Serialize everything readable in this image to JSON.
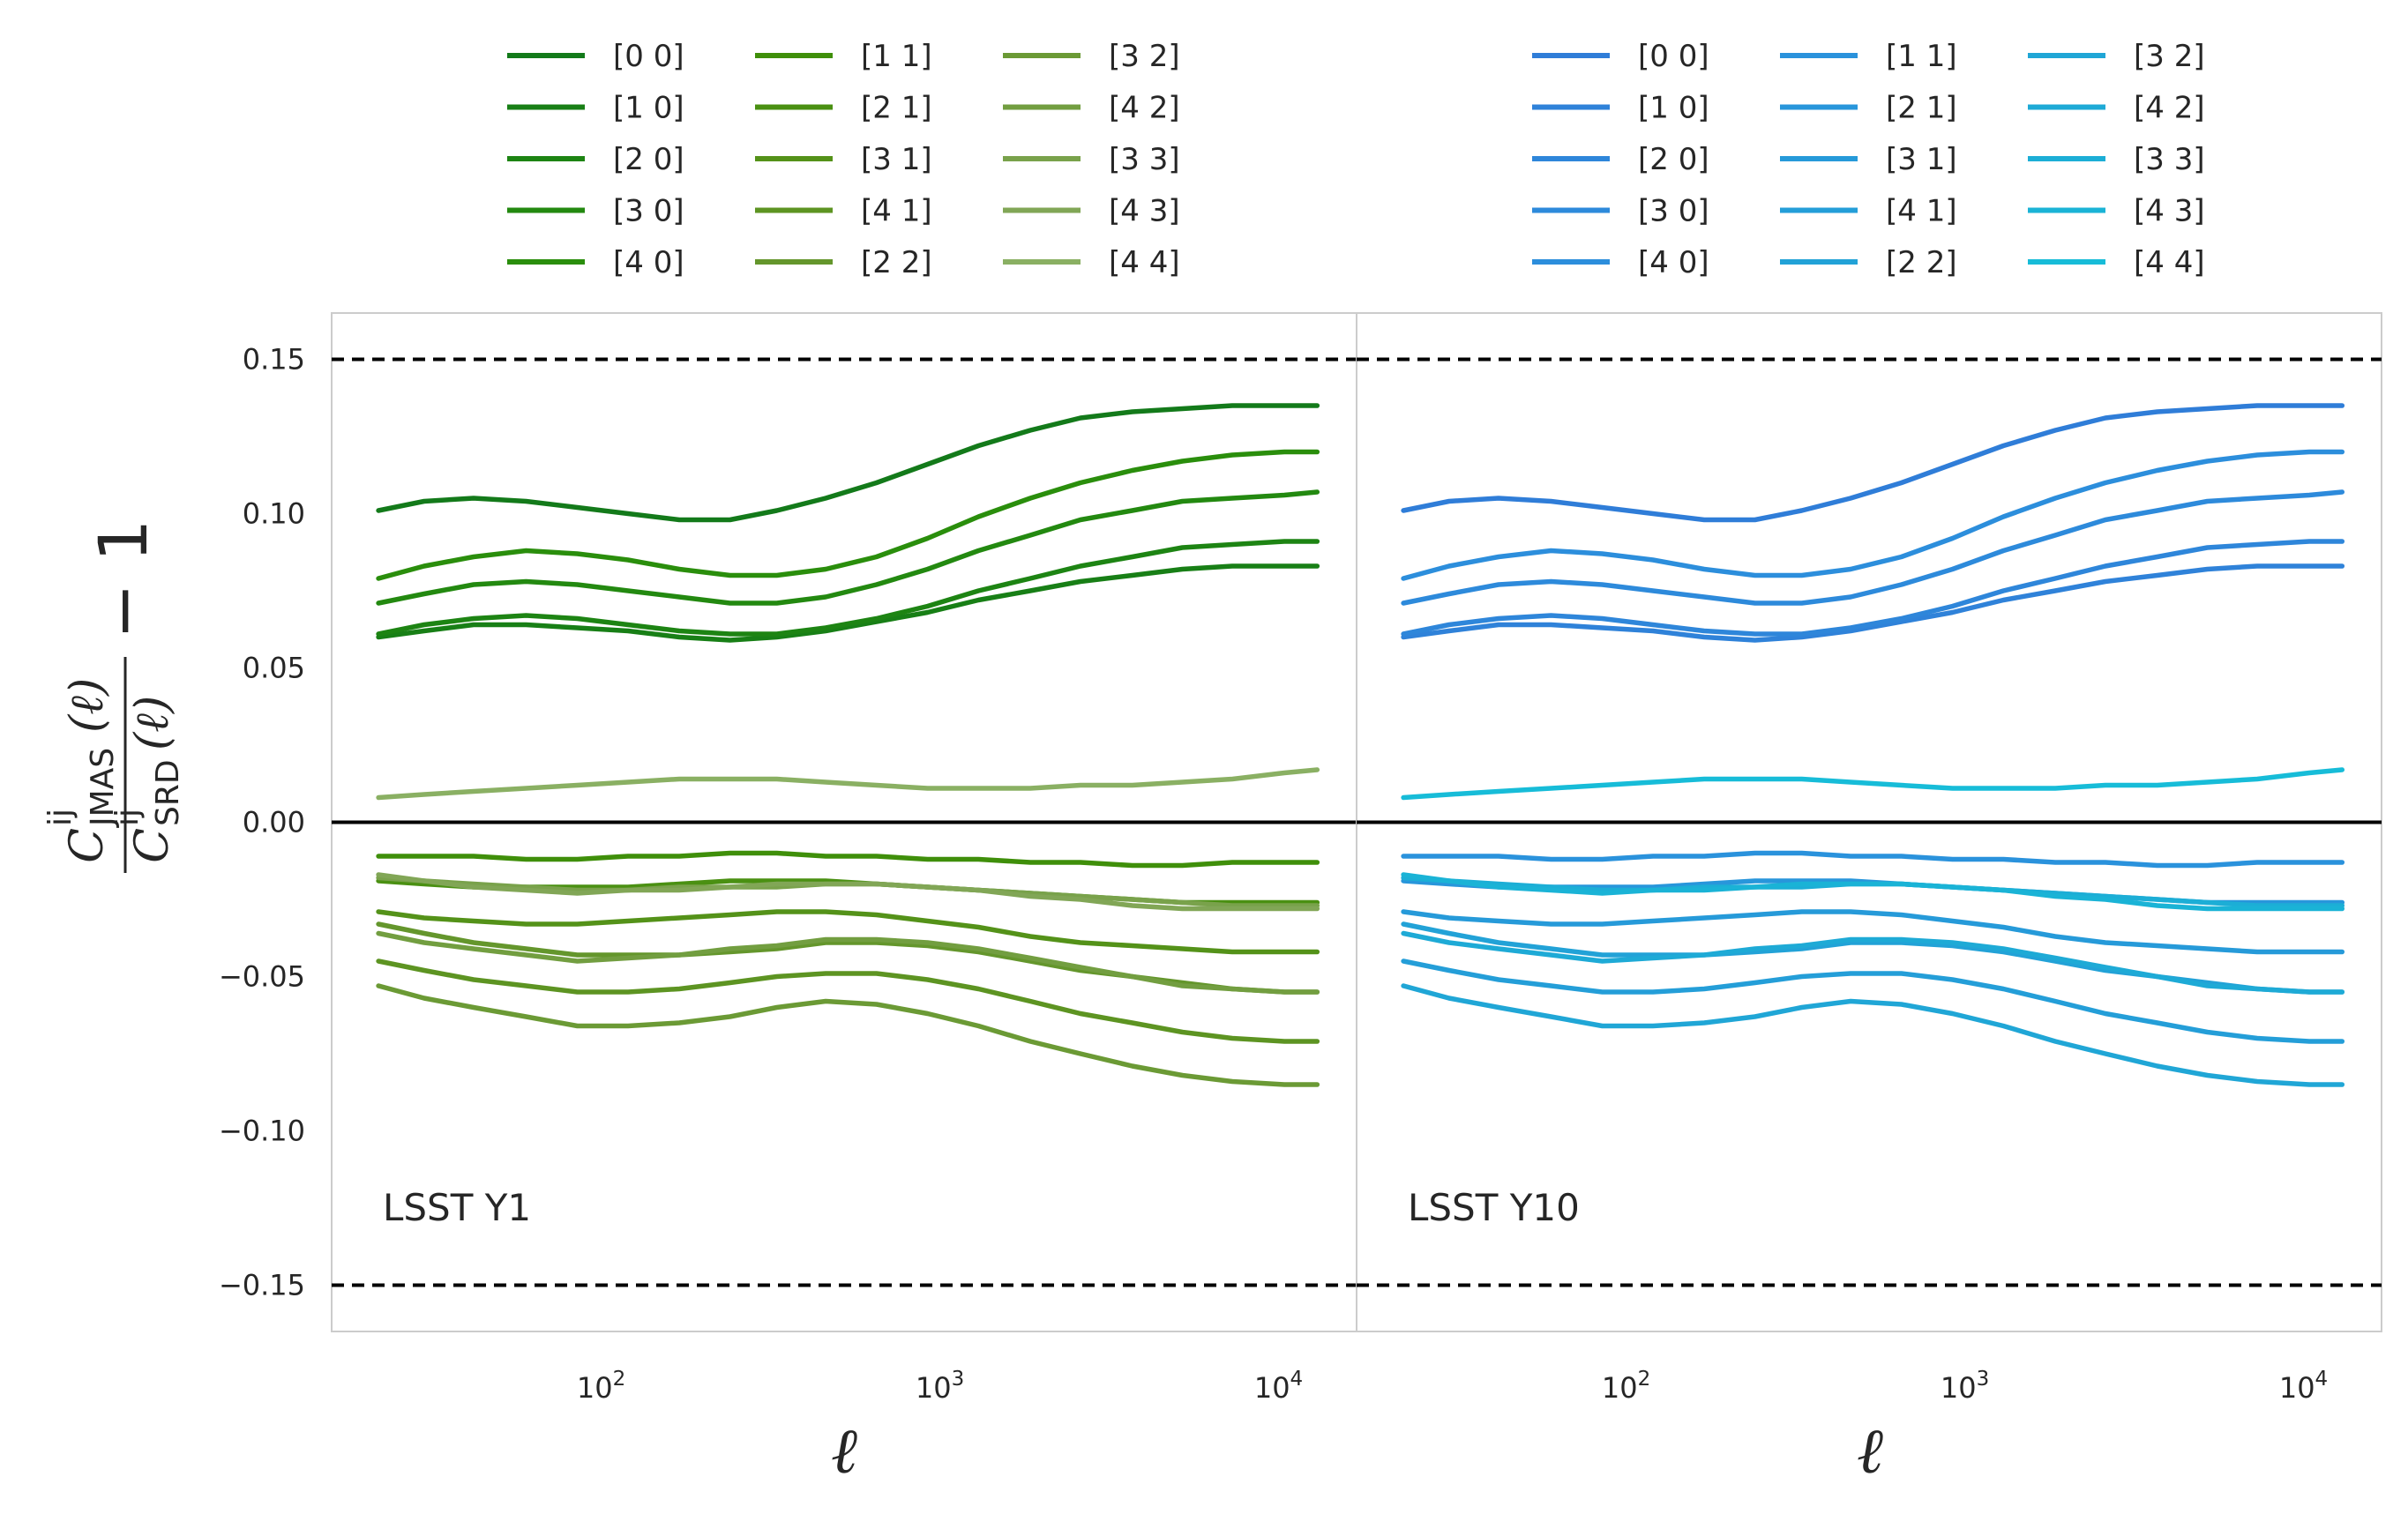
{
  "chart_data": [
    {
      "type": "line",
      "panel_label": "LSST Y1",
      "xscale": "log",
      "xlim": [
        16,
        17000
      ],
      "ylim": [
        -0.165,
        0.165
      ],
      "grid": false,
      "legend_placement": "above panel",
      "xticks": [
        {
          "value": 100,
          "base": "10",
          "exp": "2"
        },
        {
          "value": 1000,
          "base": "10",
          "exp": "3"
        },
        {
          "value": 10000,
          "base": "10",
          "exp": "4"
        }
      ],
      "yticks": [
        {
          "value": 0.15,
          "label": "0.15"
        },
        {
          "value": 0.1,
          "label": "0.10"
        },
        {
          "value": 0.05,
          "label": "0.05"
        },
        {
          "value": 0.0,
          "label": "0.00"
        },
        {
          "value": -0.05,
          "label": "−0.05"
        },
        {
          "value": -0.1,
          "label": "−0.10"
        },
        {
          "value": -0.15,
          "label": "−0.15"
        }
      ],
      "hlines": [
        {
          "y": 0.15,
          "style": "dashed"
        },
        {
          "y": -0.15,
          "style": "dashed"
        },
        {
          "y": 0.0,
          "style": "solid"
        }
      ],
      "x": [
        22,
        30,
        42,
        60,
        85,
        120,
        170,
        240,
        330,
        460,
        650,
        920,
        1300,
        1850,
        2600,
        3700,
        5200,
        7300,
        10400,
        13000
      ],
      "series": [
        {
          "name": "[0 0]",
          "color": "#137a1a",
          "values": [
            0.101,
            0.104,
            0.105,
            0.104,
            0.102,
            0.1,
            0.098,
            0.098,
            0.101,
            0.105,
            0.11,
            0.116,
            0.122,
            0.127,
            0.131,
            0.133,
            0.134,
            0.135,
            0.135,
            0.135
          ]
        },
        {
          "name": "[1 0]",
          "color": "#187f16",
          "values": [
            0.06,
            0.062,
            0.064,
            0.064,
            0.063,
            0.062,
            0.06,
            0.059,
            0.06,
            0.062,
            0.065,
            0.068,
            0.072,
            0.075,
            0.078,
            0.08,
            0.082,
            0.083,
            0.083,
            0.083
          ]
        },
        {
          "name": "[2 0]",
          "color": "#1d8413",
          "values": [
            0.061,
            0.064,
            0.066,
            0.067,
            0.066,
            0.064,
            0.062,
            0.061,
            0.061,
            0.063,
            0.066,
            0.07,
            0.075,
            0.079,
            0.083,
            0.086,
            0.089,
            0.09,
            0.091,
            0.091
          ]
        },
        {
          "name": "[3 0]",
          "color": "#238910",
          "values": [
            0.071,
            0.074,
            0.077,
            0.078,
            0.077,
            0.075,
            0.073,
            0.071,
            0.071,
            0.073,
            0.077,
            0.082,
            0.088,
            0.093,
            0.098,
            0.101,
            0.104,
            0.105,
            0.106,
            0.107
          ]
        },
        {
          "name": "[4 0]",
          "color": "#2a8e0c",
          "values": [
            0.079,
            0.083,
            0.086,
            0.088,
            0.087,
            0.085,
            0.082,
            0.08,
            0.08,
            0.082,
            0.086,
            0.092,
            0.099,
            0.105,
            0.11,
            0.114,
            0.117,
            0.119,
            0.12,
            0.12
          ]
        },
        {
          "name": "[1 1]",
          "color": "#3f8f0a",
          "values": [
            -0.011,
            -0.011,
            -0.011,
            -0.012,
            -0.012,
            -0.011,
            -0.011,
            -0.01,
            -0.01,
            -0.011,
            -0.011,
            -0.012,
            -0.012,
            -0.013,
            -0.013,
            -0.014,
            -0.014,
            -0.013,
            -0.013,
            -0.013
          ]
        },
        {
          "name": "[2 1]",
          "color": "#4a9012",
          "values": [
            -0.019,
            -0.02,
            -0.021,
            -0.021,
            -0.021,
            -0.021,
            -0.02,
            -0.019,
            -0.019,
            -0.019,
            -0.02,
            -0.021,
            -0.022,
            -0.023,
            -0.024,
            -0.025,
            -0.026,
            -0.026,
            -0.026,
            -0.026
          ]
        },
        {
          "name": "[3 1]",
          "color": "#549219",
          "values": [
            -0.029,
            -0.031,
            -0.032,
            -0.033,
            -0.033,
            -0.032,
            -0.031,
            -0.03,
            -0.029,
            -0.029,
            -0.03,
            -0.032,
            -0.034,
            -0.037,
            -0.039,
            -0.04,
            -0.041,
            -0.042,
            -0.042,
            -0.042
          ]
        },
        {
          "name": "[4 1]",
          "color": "#5d9422",
          "values": [
            -0.045,
            -0.048,
            -0.051,
            -0.053,
            -0.055,
            -0.055,
            -0.054,
            -0.052,
            -0.05,
            -0.049,
            -0.049,
            -0.051,
            -0.054,
            -0.058,
            -0.062,
            -0.065,
            -0.068,
            -0.07,
            -0.071,
            -0.071
          ]
        },
        {
          "name": "[2 2]",
          "color": "#64962c",
          "values": [
            -0.033,
            -0.036,
            -0.039,
            -0.041,
            -0.043,
            -0.043,
            -0.043,
            -0.042,
            -0.041,
            -0.039,
            -0.039,
            -0.04,
            -0.042,
            -0.045,
            -0.048,
            -0.05,
            -0.052,
            -0.054,
            -0.055,
            -0.055
          ]
        },
        {
          "name": "[3 2]",
          "color": "#6b9a35",
          "values": [
            -0.053,
            -0.057,
            -0.06,
            -0.063,
            -0.066,
            -0.066,
            -0.065,
            -0.063,
            -0.06,
            -0.058,
            -0.059,
            -0.062,
            -0.066,
            -0.071,
            -0.075,
            -0.079,
            -0.082,
            -0.084,
            -0.085,
            -0.085
          ]
        },
        {
          "name": "[4 2]",
          "color": "#729e40",
          "values": [
            -0.036,
            -0.039,
            -0.041,
            -0.043,
            -0.045,
            -0.044,
            -0.043,
            -0.041,
            -0.04,
            -0.038,
            -0.038,
            -0.039,
            -0.041,
            -0.044,
            -0.047,
            -0.05,
            -0.053,
            -0.054,
            -0.055,
            -0.055
          ]
        },
        {
          "name": "[3 3]",
          "color": "#79a24b",
          "values": [
            -0.018,
            -0.019,
            -0.02,
            -0.021,
            -0.022,
            -0.022,
            -0.021,
            -0.021,
            -0.021,
            -0.02,
            -0.02,
            -0.021,
            -0.022,
            -0.023,
            -0.024,
            -0.025,
            -0.026,
            -0.027,
            -0.027,
            -0.027
          ]
        },
        {
          "name": "[4 3]",
          "color": "#81a656",
          "values": [
            -0.017,
            -0.019,
            -0.021,
            -0.022,
            -0.023,
            -0.022,
            -0.022,
            -0.021,
            -0.02,
            -0.02,
            -0.02,
            -0.021,
            -0.022,
            -0.024,
            -0.025,
            -0.027,
            -0.028,
            -0.028,
            -0.028,
            -0.028
          ]
        },
        {
          "name": "[4 4]",
          "color": "#8ab063",
          "values": [
            0.008,
            0.009,
            0.01,
            0.011,
            0.012,
            0.013,
            0.014,
            0.014,
            0.014,
            0.013,
            0.012,
            0.011,
            0.011,
            0.011,
            0.012,
            0.012,
            0.013,
            0.014,
            0.016,
            0.017
          ]
        }
      ]
    },
    {
      "type": "line",
      "panel_label": "LSST Y10",
      "xscale": "log",
      "xlim": [
        16,
        17000
      ],
      "ylim": [
        -0.165,
        0.165
      ],
      "grid": false,
      "legend_placement": "above panel",
      "xticks": [
        {
          "value": 100,
          "base": "10",
          "exp": "2"
        },
        {
          "value": 1000,
          "base": "10",
          "exp": "3"
        },
        {
          "value": 10000,
          "base": "10",
          "exp": "4"
        }
      ],
      "hlines": [
        {
          "y": 0.15,
          "style": "dashed"
        },
        {
          "y": -0.15,
          "style": "dashed"
        },
        {
          "y": 0.0,
          "style": "solid"
        }
      ],
      "x": [
        22,
        30,
        42,
        60,
        85,
        120,
        170,
        240,
        330,
        460,
        650,
        920,
        1300,
        1850,
        2600,
        3700,
        5200,
        7300,
        10400,
        13000
      ],
      "series": [
        {
          "name": "[0 0]",
          "color": "#2f7dd8",
          "values": [
            0.101,
            0.104,
            0.105,
            0.104,
            0.102,
            0.1,
            0.098,
            0.098,
            0.101,
            0.105,
            0.11,
            0.116,
            0.122,
            0.127,
            0.131,
            0.133,
            0.134,
            0.135,
            0.135,
            0.135
          ]
        },
        {
          "name": "[1 0]",
          "color": "#2f82d9",
          "values": [
            0.06,
            0.062,
            0.064,
            0.064,
            0.063,
            0.062,
            0.06,
            0.059,
            0.06,
            0.062,
            0.065,
            0.068,
            0.072,
            0.075,
            0.078,
            0.08,
            0.082,
            0.083,
            0.083,
            0.083
          ]
        },
        {
          "name": "[2 0]",
          "color": "#2e86da",
          "values": [
            0.061,
            0.064,
            0.066,
            0.067,
            0.066,
            0.064,
            0.062,
            0.061,
            0.061,
            0.063,
            0.066,
            0.07,
            0.075,
            0.079,
            0.083,
            0.086,
            0.089,
            0.09,
            0.091,
            0.091
          ]
        },
        {
          "name": "[3 0]",
          "color": "#2d8adb",
          "values": [
            0.071,
            0.074,
            0.077,
            0.078,
            0.077,
            0.075,
            0.073,
            0.071,
            0.071,
            0.073,
            0.077,
            0.082,
            0.088,
            0.093,
            0.098,
            0.101,
            0.104,
            0.105,
            0.106,
            0.107
          ]
        },
        {
          "name": "[4 0]",
          "color": "#2c8edc",
          "values": [
            0.079,
            0.083,
            0.086,
            0.088,
            0.087,
            0.085,
            0.082,
            0.08,
            0.08,
            0.082,
            0.086,
            0.092,
            0.099,
            0.105,
            0.11,
            0.114,
            0.117,
            0.119,
            0.12,
            0.12
          ]
        },
        {
          "name": "[1 1]",
          "color": "#2a92dc",
          "values": [
            -0.011,
            -0.011,
            -0.011,
            -0.012,
            -0.012,
            -0.011,
            -0.011,
            -0.01,
            -0.01,
            -0.011,
            -0.011,
            -0.012,
            -0.012,
            -0.013,
            -0.013,
            -0.014,
            -0.014,
            -0.013,
            -0.013,
            -0.013
          ]
        },
        {
          "name": "[2 1]",
          "color": "#2896db",
          "values": [
            -0.019,
            -0.02,
            -0.021,
            -0.021,
            -0.021,
            -0.021,
            -0.02,
            -0.019,
            -0.019,
            -0.019,
            -0.02,
            -0.021,
            -0.022,
            -0.023,
            -0.024,
            -0.025,
            -0.026,
            -0.026,
            -0.026,
            -0.026
          ]
        },
        {
          "name": "[3 1]",
          "color": "#269ad9",
          "values": [
            -0.029,
            -0.031,
            -0.032,
            -0.033,
            -0.033,
            -0.032,
            -0.031,
            -0.03,
            -0.029,
            -0.029,
            -0.03,
            -0.032,
            -0.034,
            -0.037,
            -0.039,
            -0.04,
            -0.041,
            -0.042,
            -0.042,
            -0.042
          ]
        },
        {
          "name": "[4 1]",
          "color": "#249ed8",
          "values": [
            -0.045,
            -0.048,
            -0.051,
            -0.053,
            -0.055,
            -0.055,
            -0.054,
            -0.052,
            -0.05,
            -0.049,
            -0.049,
            -0.051,
            -0.054,
            -0.058,
            -0.062,
            -0.065,
            -0.068,
            -0.07,
            -0.071,
            -0.071
          ]
        },
        {
          "name": "[2 2]",
          "color": "#22a2d7",
          "values": [
            -0.033,
            -0.036,
            -0.039,
            -0.041,
            -0.043,
            -0.043,
            -0.043,
            -0.042,
            -0.041,
            -0.039,
            -0.039,
            -0.04,
            -0.042,
            -0.045,
            -0.048,
            -0.05,
            -0.052,
            -0.054,
            -0.055,
            -0.055
          ]
        },
        {
          "name": "[3 2]",
          "color": "#20a6d6",
          "values": [
            -0.053,
            -0.057,
            -0.06,
            -0.063,
            -0.066,
            -0.066,
            -0.065,
            -0.063,
            -0.06,
            -0.058,
            -0.059,
            -0.062,
            -0.066,
            -0.071,
            -0.075,
            -0.079,
            -0.082,
            -0.084,
            -0.085,
            -0.085
          ]
        },
        {
          "name": "[4 2]",
          "color": "#1eaad6",
          "values": [
            -0.036,
            -0.039,
            -0.041,
            -0.043,
            -0.045,
            -0.044,
            -0.043,
            -0.041,
            -0.04,
            -0.038,
            -0.038,
            -0.039,
            -0.041,
            -0.044,
            -0.047,
            -0.05,
            -0.053,
            -0.054,
            -0.055,
            -0.055
          ]
        },
        {
          "name": "[3 3]",
          "color": "#1caed6",
          "values": [
            -0.018,
            -0.019,
            -0.02,
            -0.021,
            -0.022,
            -0.022,
            -0.021,
            -0.021,
            -0.021,
            -0.02,
            -0.02,
            -0.021,
            -0.022,
            -0.023,
            -0.024,
            -0.025,
            -0.026,
            -0.027,
            -0.027,
            -0.027
          ]
        },
        {
          "name": "[4 3]",
          "color": "#1ab3d6",
          "values": [
            -0.017,
            -0.019,
            -0.021,
            -0.022,
            -0.023,
            -0.022,
            -0.022,
            -0.021,
            -0.02,
            -0.02,
            -0.02,
            -0.021,
            -0.022,
            -0.024,
            -0.025,
            -0.027,
            -0.028,
            -0.028,
            -0.028,
            -0.028
          ]
        },
        {
          "name": "[4 4]",
          "color": "#17bcd8",
          "values": [
            0.008,
            0.009,
            0.01,
            0.011,
            0.012,
            0.013,
            0.014,
            0.014,
            0.014,
            0.013,
            0.012,
            0.011,
            0.011,
            0.011,
            0.012,
            0.012,
            0.013,
            0.014,
            0.016,
            0.017
          ]
        }
      ]
    }
  ],
  "axes": {
    "xlabel": "ℓ",
    "ylabel": {
      "num_main": "C",
      "num_sup": "ij",
      "num_sub": "JMAS",
      "num_arg": "(ℓ)",
      "den_main": "C",
      "den_sup": "ij",
      "den_sub": "SRD",
      "den_arg": "(ℓ)",
      "suffix": "− 1"
    }
  },
  "colors": {
    "reference_line": "#000000",
    "frame": "#cccccc",
    "text": "#262626"
  }
}
